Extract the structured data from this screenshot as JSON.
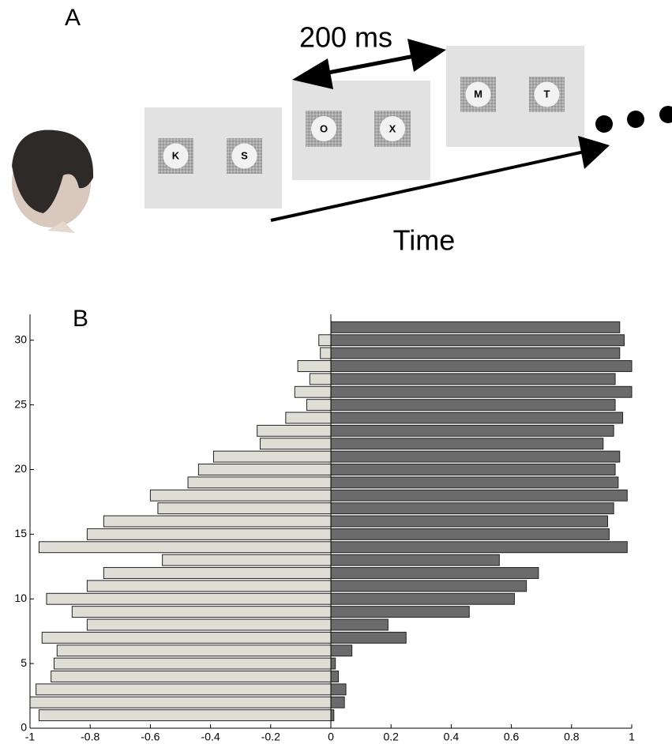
{
  "panel_a": {
    "label": "A",
    "timing": "200 ms",
    "time_label": "Time",
    "frames": [
      [
        "K",
        "S"
      ],
      [
        "O",
        "X"
      ],
      [
        "M",
        "T"
      ]
    ]
  },
  "chart_data": {
    "type": "barh",
    "panel_label": "B",
    "y": [
      1,
      2,
      3,
      4,
      5,
      6,
      7,
      8,
      9,
      10,
      11,
      12,
      13,
      14,
      15,
      16,
      17,
      18,
      19,
      20,
      21,
      22,
      23,
      24,
      25,
      26,
      27,
      28,
      29,
      30,
      31
    ],
    "series": [
      {
        "color": "#deded6",
        "values": [
          -0.97,
          -1.0,
          -0.98,
          -0.93,
          -0.92,
          -0.91,
          -0.96,
          -0.81,
          -0.86,
          -0.945,
          -0.81,
          -0.755,
          -0.56,
          -0.97,
          -0.81,
          -0.755,
          -0.575,
          -0.6,
          -0.475,
          -0.44,
          -0.39,
          -0.235,
          -0.245,
          -0.15,
          -0.08,
          -0.12,
          -0.07,
          -0.11,
          -0.035,
          -0.04,
          0
        ]
      },
      {
        "color": "#6b6b6b",
        "values": [
          0.01,
          0.045,
          0.05,
          0.025,
          0.015,
          0.07,
          0.25,
          0.19,
          0.46,
          0.61,
          0.65,
          0.69,
          0.56,
          0.985,
          0.925,
          0.92,
          0.94,
          0.985,
          0.955,
          0.945,
          0.96,
          0.905,
          0.94,
          0.97,
          0.945,
          1.0,
          0.945,
          1.0,
          0.96,
          0.975,
          0.96
        ]
      }
    ],
    "xlim": [
      -1,
      1
    ],
    "xticks": [
      -1,
      -0.8,
      -0.6,
      -0.4,
      -0.2,
      0,
      0.2,
      0.4,
      0.6,
      0.8,
      1
    ],
    "ylim": [
      0,
      32
    ],
    "yticks": [
      0,
      5,
      10,
      15,
      20,
      25,
      30
    ]
  }
}
